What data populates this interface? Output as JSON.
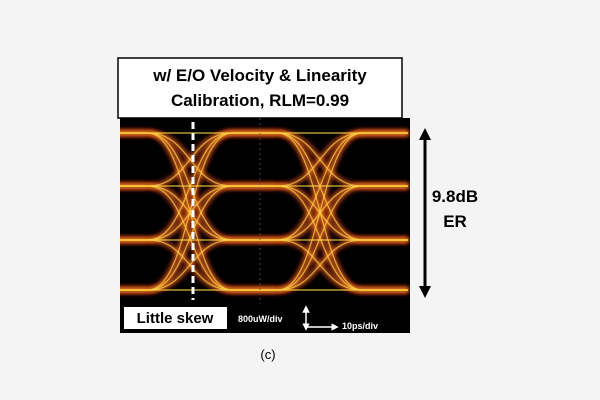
{
  "figure": {
    "title_lines": [
      "w/ E/O Velocity & Linearity",
      "Calibration, RLM=0.99"
    ],
    "er_lines": [
      "9.8dB",
      "ER"
    ],
    "skew_label": "Little skew",
    "vertical_scale": "800uW/div",
    "horizontal_scale": "10ps/div",
    "caption": "(c)"
  }
}
